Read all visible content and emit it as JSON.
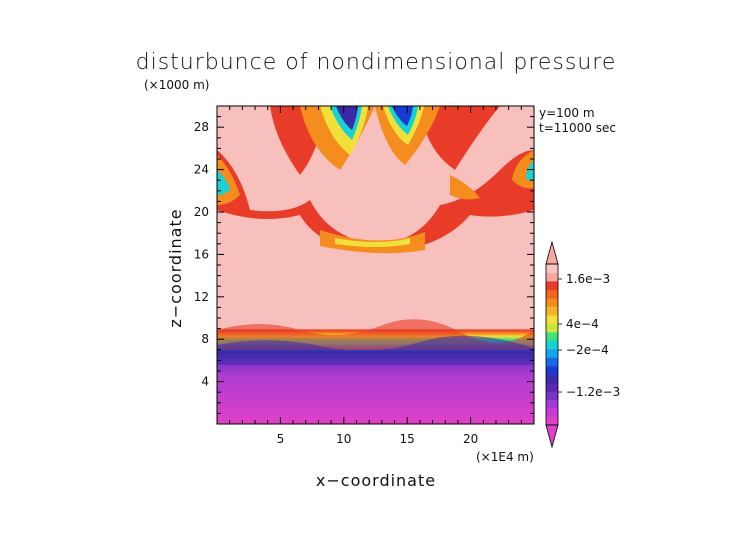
{
  "chart_data": {
    "type": "heatmap",
    "title": "disturbunce of nondimensional pressure",
    "y_unit": "(×1000 m)",
    "x_unit": "(×1E4 m)",
    "xlabel": "x−coordinate",
    "ylabel": "z−coordinate",
    "annotations": [
      "y=100  m",
      "t=11000 sec"
    ],
    "xlim": [
      0,
      25
    ],
    "ylim": [
      0,
      30
    ],
    "x_ticks": [
      5,
      10,
      15,
      20
    ],
    "y_ticks": [
      4,
      8,
      12,
      16,
      20,
      24,
      28
    ],
    "x_tick_labels": [
      "5",
      "10",
      "15",
      "20"
    ],
    "y_tick_labels": [
      "4",
      "8",
      "12",
      "16",
      "20",
      "24",
      "28"
    ],
    "colorbar": {
      "labels": [
        "1.6e−3",
        "4e−4",
        "−2e−4",
        "−1.2e−3"
      ],
      "colors": [
        "#e040c8",
        "#c83cd2",
        "#a03cd8",
        "#7a32c8",
        "#5a28b4",
        "#3a2aa8",
        "#1e3ad2",
        "#1a6ae8",
        "#14a6f0",
        "#16d2d2",
        "#3ee07a",
        "#c8e83a",
        "#f0e03a",
        "#f5b428",
        "#f58c1e",
        "#f0641e",
        "#e83c28",
        "#f8a8a0",
        "#f9c4c0"
      ]
    },
    "description_of_field": "Lower layer (0–7 km) strongly negative (magenta/purple); sharp gradient near 7–9.5 km through blue, cyan, green, yellow, orange, red; upper region 10–30 km mostly weakly positive (light pink) with stronger positive red/orange bands near 16–28 km and a few negative blue cells near the top around x≈11 and x≈15."
  }
}
